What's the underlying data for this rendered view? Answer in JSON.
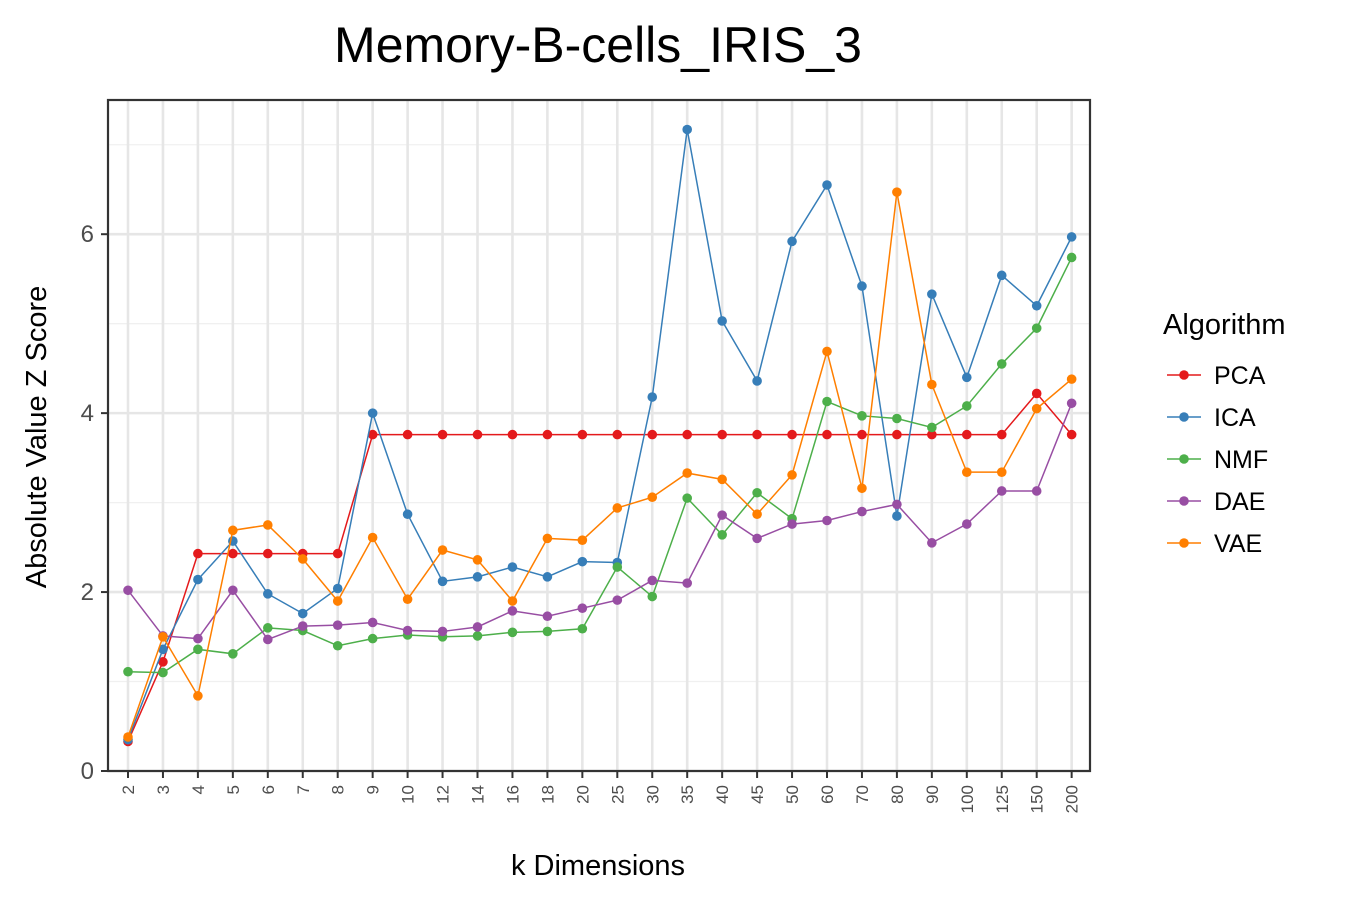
{
  "chart_data": {
    "type": "line",
    "title": "Memory-B-cells_IRIS_3",
    "xlabel": "k Dimensions",
    "ylabel": "Absolute Value Z Score",
    "ylim": [
      0,
      7.5
    ],
    "yticks": [
      0,
      2,
      4,
      6
    ],
    "grid": true,
    "legend_title": "Algorithm",
    "legend_position": "right",
    "categories": [
      "2",
      "3",
      "4",
      "5",
      "6",
      "7",
      "8",
      "9",
      "10",
      "12",
      "14",
      "16",
      "18",
      "20",
      "25",
      "30",
      "35",
      "40",
      "45",
      "50",
      "60",
      "70",
      "80",
      "90",
      "100",
      "125",
      "150",
      "200"
    ],
    "series": [
      {
        "name": "PCA",
        "color": "#e41a1c",
        "values": [
          0.33,
          1.22,
          2.43,
          2.43,
          2.43,
          2.43,
          2.43,
          3.76,
          3.76,
          3.76,
          3.76,
          3.76,
          3.76,
          3.76,
          3.76,
          3.76,
          3.76,
          3.76,
          3.76,
          3.76,
          3.76,
          3.76,
          3.76,
          3.76,
          3.76,
          3.76,
          4.22,
          3.76
        ]
      },
      {
        "name": "ICA",
        "color": "#377eb8",
        "values": [
          0.35,
          1.36,
          2.14,
          2.57,
          1.98,
          1.76,
          2.04,
          4.0,
          2.87,
          2.12,
          2.17,
          2.28,
          2.17,
          2.34,
          2.33,
          4.18,
          7.17,
          5.03,
          4.36,
          5.92,
          6.55,
          5.42,
          2.85,
          5.33,
          4.4,
          5.54,
          5.2,
          5.97
        ]
      },
      {
        "name": "NMF",
        "color": "#4daf4a",
        "values": [
          1.11,
          1.1,
          1.36,
          1.31,
          1.6,
          1.57,
          1.4,
          1.48,
          1.52,
          1.5,
          1.51,
          1.55,
          1.56,
          1.59,
          2.28,
          1.95,
          3.05,
          2.64,
          3.11,
          2.82,
          4.13,
          3.97,
          3.94,
          3.84,
          4.08,
          4.55,
          4.95,
          5.74
        ]
      },
      {
        "name": "DAE",
        "color": "#984ea3",
        "values": [
          2.02,
          1.51,
          1.48,
          2.02,
          1.47,
          1.62,
          1.63,
          1.66,
          1.57,
          1.56,
          1.61,
          1.79,
          1.73,
          1.82,
          1.91,
          2.13,
          2.1,
          2.86,
          2.6,
          2.76,
          2.8,
          2.9,
          2.98,
          2.55,
          2.76,
          3.13,
          3.13,
          4.11
        ]
      },
      {
        "name": "VAE",
        "color": "#ff7f00",
        "values": [
          0.38,
          1.5,
          0.84,
          2.69,
          2.75,
          2.37,
          1.9,
          2.61,
          1.92,
          2.47,
          2.36,
          1.9,
          2.6,
          2.58,
          2.94,
          3.06,
          3.33,
          3.26,
          2.87,
          3.31,
          4.69,
          3.16,
          6.47,
          4.32,
          3.34,
          3.34,
          4.05,
          4.38
        ]
      }
    ]
  }
}
